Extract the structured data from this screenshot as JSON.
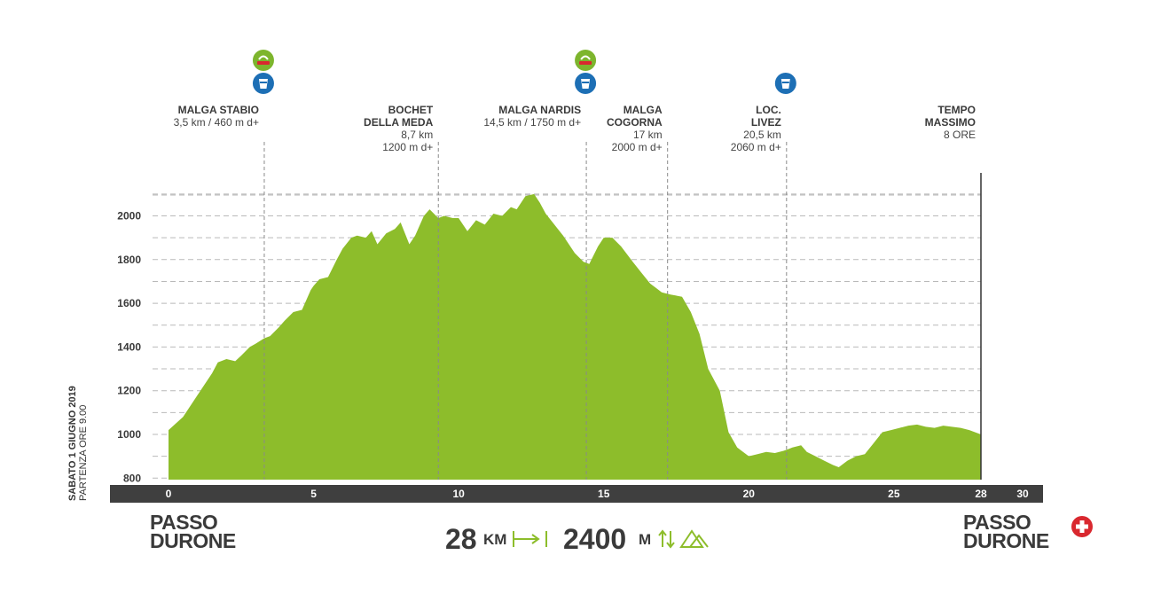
{
  "colors": {
    "profile_fill": "#8dbd2b",
    "axis_bar": "#3f3f3f",
    "water_icon": "#1d6fb5",
    "food_icon": "#7db52d",
    "finish_icon": "#d9282f",
    "stat_arrow": "#8dbd2b"
  },
  "date_line1": "SABATO 1 GIUGNO 2019",
  "date_line2": "PARTENZA ORE 9.00",
  "start_place": [
    "PASSO",
    "DURONE"
  ],
  "end_place": [
    "PASSO",
    "DURONE"
  ],
  "stats": {
    "distance_value": "28",
    "distance_unit": "KM",
    "elevation_value": "2400",
    "elevation_unit": "M"
  },
  "checkpoints": [
    {
      "km": 3.3,
      "name": [
        "MALGA STABIO"
      ],
      "info": [
        "3,5 km / 460 m d+"
      ],
      "icons": [
        "food-icon",
        "water-icon"
      ]
    },
    {
      "km": 9.3,
      "name": [
        "BOCHET",
        "DELLA MEDA"
      ],
      "info": [
        "8,7 km",
        "1200 m d+"
      ],
      "icons": []
    },
    {
      "km": 14.4,
      "name": [
        "MALGA NARDIS"
      ],
      "info": [
        "14,5 km / 1750 m d+"
      ],
      "icons": [
        "food-icon",
        "water-icon"
      ]
    },
    {
      "km": 17.2,
      "name": [
        "MALGA",
        "COGORNA"
      ],
      "info": [
        "17 km",
        "2000 m d+"
      ],
      "icons": []
    },
    {
      "km": 21.3,
      "name": [
        "LOC.",
        "LIVEZ"
      ],
      "info": [
        "20,5 km",
        "2060 m d+"
      ],
      "icons": [
        "water-icon"
      ]
    },
    {
      "km": 28,
      "name": [
        "TEMPO",
        "MASSIMO"
      ],
      "info": [
        "8 ORE"
      ],
      "icons": []
    }
  ],
  "chart_data": {
    "type": "area",
    "xlabel": "",
    "ylabel": "",
    "xlim": [
      0,
      30
    ],
    "ylim": [
      800,
      2200
    ],
    "x_ticks": [
      0,
      5,
      10,
      15,
      20,
      25,
      28,
      30
    ],
    "y_ticks": [
      800,
      1000,
      1200,
      1400,
      1600,
      1800,
      2000
    ],
    "grid": true,
    "series": [
      {
        "x": [
          0,
          0.5,
          1,
          1.5,
          1.7,
          2,
          2.3,
          2.5,
          2.8,
          3,
          3.3,
          3.5,
          3.8,
          4,
          4.3,
          4.6,
          4.9,
          5,
          5.2,
          5.5,
          5.8,
          6,
          6.3,
          6.5,
          6.8,
          7,
          7.2,
          7.5,
          7.8,
          8,
          8.3,
          8.5,
          8.8,
          9,
          9.3,
          9.5,
          9.8,
          10,
          10.3,
          10.6,
          10.9,
          11.2,
          11.5,
          11.8,
          12,
          12.3,
          12.6,
          12.8,
          13,
          13.3,
          13.6,
          14,
          14.3,
          14.5,
          14.8,
          15,
          15.3,
          15.6,
          16,
          16.3,
          16.6,
          16.8,
          17,
          17.3,
          17.7,
          18,
          18.3,
          18.6,
          19,
          19.3,
          19.6,
          20,
          20.3,
          20.6,
          20.9,
          21.2,
          21.5,
          21.8,
          22,
          22.3,
          22.6,
          22.9,
          23.1,
          23.4,
          23.7,
          24,
          24.3,
          24.6,
          24.9,
          25.2,
          25.5,
          25.8,
          26.1,
          26.4,
          26.7,
          27,
          27.3,
          27.6,
          28
        ],
        "y": [
          1020,
          1080,
          1180,
          1280,
          1330,
          1345,
          1335,
          1360,
          1400,
          1415,
          1440,
          1450,
          1490,
          1520,
          1560,
          1570,
          1660,
          1680,
          1710,
          1720,
          1800,
          1850,
          1900,
          1910,
          1900,
          1930,
          1870,
          1920,
          1940,
          1970,
          1870,
          1910,
          2000,
          2030,
          1990,
          2000,
          1990,
          1990,
          1930,
          1980,
          1960,
          2010,
          2000,
          2040,
          2030,
          2090,
          2100,
          2060,
          2010,
          1960,
          1910,
          1830,
          1790,
          1780,
          1860,
          1900,
          1900,
          1860,
          1790,
          1740,
          1690,
          1670,
          1650,
          1640,
          1630,
          1560,
          1460,
          1300,
          1200,
          1010,
          940,
          900,
          910,
          920,
          915,
          925,
          940,
          950,
          920,
          900,
          880,
          860,
          850,
          880,
          900,
          910,
          960,
          1010,
          1020,
          1030,
          1040,
          1045,
          1035,
          1030,
          1040,
          1035,
          1030,
          1020,
          1000
        ]
      }
    ]
  }
}
